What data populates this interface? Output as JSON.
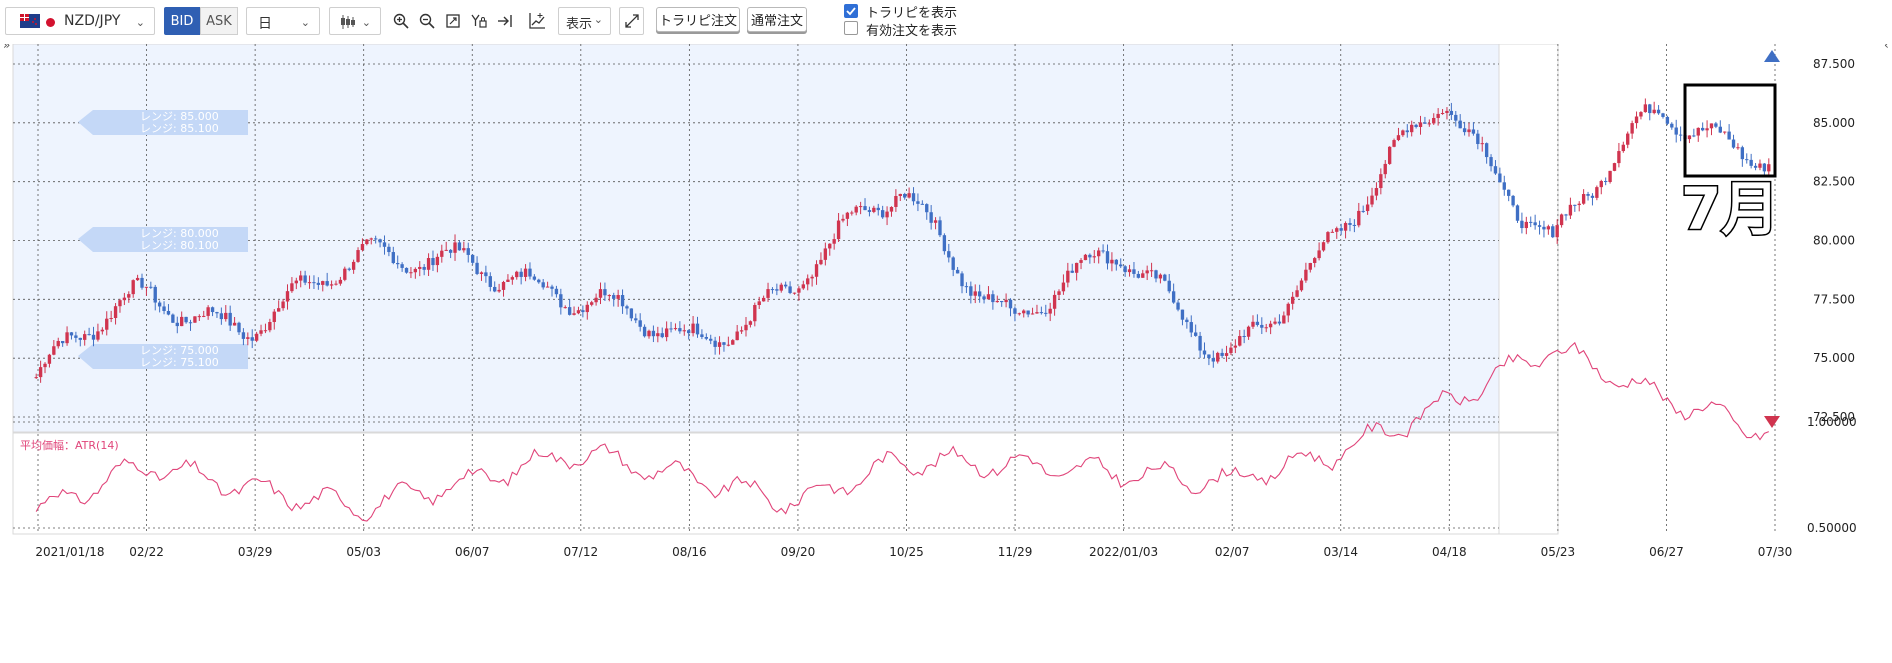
{
  "toolbar": {
    "pair": "NZD/JPY",
    "bid_label": "BID",
    "ask_label": "ASK",
    "timeframe": "日",
    "display_label": "表示",
    "trailing_order_label": "トラリピ注文",
    "normal_order_label": "通常注文",
    "show_trailing_label": "トラリピを表示",
    "show_trailing_checked": true,
    "show_active_orders_label": "有効注文を表示",
    "show_active_orders_checked": false
  },
  "icons": [
    "nz-flag-icon",
    "jp-flag-icon",
    "candlestick-icon",
    "zoom-in-icon",
    "zoom-out-icon",
    "fit-icon",
    "y-lock-icon",
    "jump-latest-icon",
    "indicator-icon",
    "expand-icon",
    "collapse-left-icon",
    "collapse-right-icon"
  ],
  "colors": {
    "up": "#d0344f",
    "down": "#3f6fc4",
    "atr": "#e0457a",
    "chart_bg": "#eef4fe",
    "accent": "#2f5fb3",
    "annotation": "#000000"
  },
  "range_labels": [
    {
      "line1": "レンジ: 85.000",
      "line2": "レンジ: 85.100"
    },
    {
      "line1": "レンジ: 80.000",
      "line2": "レンジ: 80.100"
    },
    {
      "line1": "レンジ: 75.000",
      "line2": "レンジ: 75.100"
    }
  ],
  "annotation_text": "7月",
  "chart_data": [
    {
      "type": "candlestick",
      "title": "",
      "ylim": [
        72.5,
        87.5
      ],
      "y_ticks": [
        "87.500",
        "85.000",
        "82.500",
        "80.000",
        "77.500",
        "75.000",
        "72.500"
      ],
      "x_ticks": [
        "2021/01/18",
        "02/22",
        "03/29",
        "05/03",
        "06/07",
        "07/12",
        "08/16",
        "09/20",
        "10/25",
        "11/29",
        "2022/01/03",
        "02/07",
        "03/14",
        "04/18",
        "05/23",
        "06/27",
        "07/30"
      ],
      "close_path_dates": [
        "2021/01/18",
        "02/22",
        "03/29",
        "05/03",
        "06/07",
        "07/12",
        "08/16",
        "09/20",
        "10/25",
        "11/29",
        "2022/01/03",
        "02/07",
        "03/14",
        "04/18",
        "05/23",
        "06/27",
        "07/30"
      ],
      "close_path_values": [
        74.2,
        77.5,
        76.8,
        78.7,
        79.8,
        77.0,
        76.0,
        78.0,
        82.0,
        77.0,
        79.0,
        75.5,
        79.5,
        86.5,
        79.8,
        85.5,
        84.0
      ],
      "grid": true
    },
    {
      "type": "line",
      "title": "平均価幅：ATR(14)",
      "ylim": [
        0.45,
        1.5
      ],
      "y_ticks": [
        "1.00000",
        "0.50000"
      ],
      "x_dates": [
        "2021/01/18",
        "02/22",
        "03/29",
        "05/03",
        "06/07",
        "07/12",
        "08/16",
        "09/20",
        "10/25",
        "11/29",
        "2022/01/03",
        "02/07",
        "03/14",
        "04/18",
        "05/23",
        "06/27",
        "07/30"
      ],
      "values": [
        0.58,
        0.8,
        0.68,
        0.6,
        0.72,
        0.86,
        0.74,
        0.62,
        0.82,
        0.8,
        0.76,
        0.72,
        0.85,
        1.08,
        1.35,
        1.12,
        0.95
      ],
      "grid": true
    }
  ]
}
